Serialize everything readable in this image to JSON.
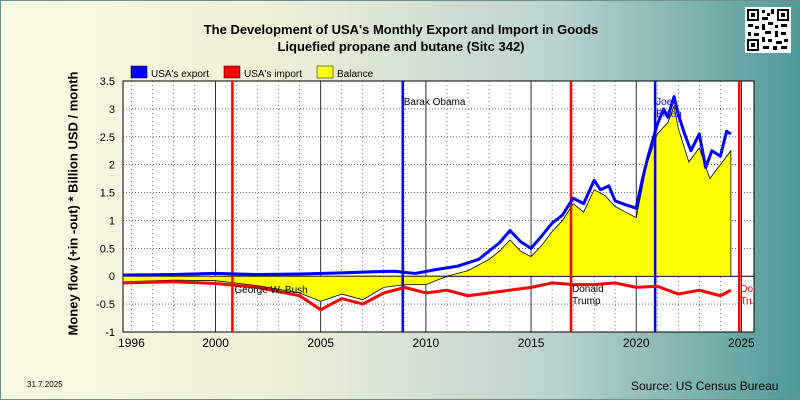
{
  "chart_data": {
    "type": "line",
    "title": "The Development of USA's Monthly Export and Import in Goods",
    "subtitle": "Liquefied propane and butane (Sitc 342)",
    "ylabel": "Money flow (+in -out) * Billion USD / month",
    "xlabel": "",
    "xlim": [
      1995.6,
      2025.6
    ],
    "ylim": [
      -1,
      3.5
    ],
    "y_ticks": [
      "-1",
      "-0.5",
      "0",
      "0.5",
      "1",
      "1.5",
      "2",
      "2.5",
      "3",
      "3.5"
    ],
    "x_ticks": [
      "1996",
      "2000",
      "2005",
      "2010",
      "2015",
      "2020",
      "2025"
    ],
    "grid": true,
    "legend": "top-left",
    "series": [
      {
        "name": "USA's export",
        "color": "#0000ff",
        "x": [
          1995.6,
          1998,
          2000,
          2002,
          2004,
          2006,
          2007.5,
          2008.5,
          2009.5,
          2010.5,
          2011.5,
          2012.5,
          2013,
          2013.5,
          2014,
          2014.5,
          2015,
          2015.5,
          2016,
          2016.5,
          2017,
          2017.5,
          2018,
          2018.3,
          2018.7,
          2019,
          2019.5,
          2020,
          2020.3,
          2020.6,
          2021,
          2021.3,
          2021.5,
          2021.8,
          2022,
          2022.3,
          2022.6,
          2023,
          2023.3,
          2023.6,
          2024,
          2024.3,
          2024.5
        ],
        "y": [
          0.02,
          0.03,
          0.05,
          0.03,
          0.04,
          0.06,
          0.08,
          0.09,
          0.05,
          0.12,
          0.18,
          0.3,
          0.45,
          0.6,
          0.82,
          0.62,
          0.5,
          0.72,
          0.95,
          1.1,
          1.4,
          1.3,
          1.72,
          1.55,
          1.62,
          1.35,
          1.28,
          1.22,
          1.75,
          2.2,
          2.72,
          3.0,
          2.85,
          3.22,
          2.9,
          2.55,
          2.25,
          2.55,
          1.95,
          2.25,
          2.15,
          2.6,
          2.55
        ]
      },
      {
        "name": "USA's import",
        "color": "#ff0000",
        "x": [
          1995.6,
          1998,
          2000,
          2002,
          2004,
          2005,
          2006,
          2007,
          2008,
          2009,
          2010,
          2011,
          2012,
          2013,
          2014,
          2015,
          2016,
          2017,
          2018,
          2019,
          2020,
          2021,
          2022,
          2023,
          2024,
          2024.5
        ],
        "y": [
          -0.12,
          -0.1,
          -0.13,
          -0.2,
          -0.35,
          -0.6,
          -0.4,
          -0.5,
          -0.3,
          -0.2,
          -0.3,
          -0.25,
          -0.35,
          -0.3,
          -0.25,
          -0.2,
          -0.12,
          -0.15,
          -0.15,
          -0.12,
          -0.2,
          -0.18,
          -0.32,
          -0.25,
          -0.35,
          -0.25
        ]
      },
      {
        "name": "Balance",
        "color": "#ffff00",
        "x": [
          1995.6,
          1998,
          2000,
          2002,
          2004,
          2005,
          2006,
          2007,
          2008,
          2009,
          2010,
          2011,
          2012,
          2013,
          2013.5,
          2014,
          2014.5,
          2015,
          2015.5,
          2016,
          2016.5,
          2017,
          2017.5,
          2018,
          2018.5,
          2019,
          2019.5,
          2020,
          2020.5,
          2021,
          2021.5,
          2021.8,
          2022,
          2022.5,
          2023,
          2023.5,
          2024,
          2024.5
        ],
        "y": [
          -0.1,
          -0.07,
          -0.08,
          -0.17,
          -0.3,
          -0.45,
          -0.32,
          -0.42,
          -0.2,
          -0.15,
          -0.15,
          0.0,
          0.1,
          0.3,
          0.45,
          0.65,
          0.45,
          0.35,
          0.55,
          0.8,
          1.0,
          1.3,
          1.15,
          1.55,
          1.45,
          1.25,
          1.15,
          1.05,
          2.0,
          2.55,
          2.75,
          3.05,
          2.65,
          2.05,
          2.3,
          1.75,
          2.0,
          2.25
        ]
      }
    ],
    "annotations": [
      {
        "x": 2000.8,
        "label": "George W. Bush",
        "color": "#ff0000"
      },
      {
        "x": 2008.9,
        "label": "Barak Obama",
        "color": "#0000ff"
      },
      {
        "x": 2016.9,
        "label": "Donald Trump",
        "color": "#ff0000"
      },
      {
        "x": 2020.9,
        "label": "Joe Biden",
        "color": "#0000ff"
      },
      {
        "x": 2024.9,
        "label": "Donald Trump",
        "color": "#ff0000"
      }
    ]
  },
  "date": "31.7.2025",
  "source": "Source: US Census Bureau",
  "colors": {
    "plot_background": "#ffffff",
    "grid": "#000000"
  }
}
